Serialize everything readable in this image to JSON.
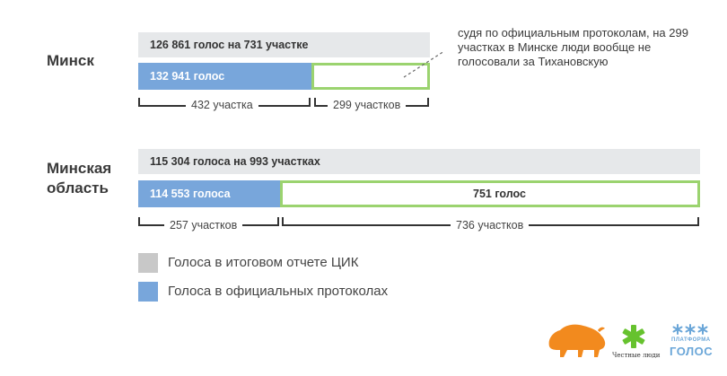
{
  "chart_data": {
    "type": "bar",
    "regions": [
      {
        "name": "Минск",
        "cik_label": "126 861 голос на 731 участке",
        "cik_votes": 126861,
        "protocol_label": "132 941 голос",
        "protocol_votes": 132941,
        "outline_label": "",
        "brackets": [
          {
            "label": "432 участка",
            "precincts": 432
          },
          {
            "label": "299 участков",
            "precincts": 299
          }
        ]
      },
      {
        "name": "Минская\nобласть",
        "cik_label": "115 304 голоса на 993 участках",
        "cik_votes": 115304,
        "protocol_label": "114 553 голоса",
        "protocol_votes": 114553,
        "outline_label": "751 голос",
        "outline_votes": 751,
        "brackets": [
          {
            "label": "257 участков",
            "precincts": 257
          },
          {
            "label": "736 участков",
            "precincts": 736
          }
        ]
      }
    ],
    "annotation": "судя по официальным протоколам, на 299 участках в Минске люди вообще не голосовали за Тихановскую",
    "legend": [
      {
        "label": "Голоса в итоговом отчете ЦИК",
        "color": "#c8c8c8"
      },
      {
        "label": "Голоса в официальных протоколах",
        "color": "#78a6db"
      }
    ]
  },
  "colors": {
    "cik_bar": "#e6e8ea",
    "protocol_bar": "#78a6db",
    "outline": "#9bd36f",
    "bison": "#f28a1e",
    "honest_people": "#66c22e",
    "golos": "#6aa6d8"
  },
  "logos": {
    "honest_people_caption": "Честные люди",
    "golos_top": "ПЛАТФОРМА",
    "golos_main": "ГОЛОС"
  }
}
